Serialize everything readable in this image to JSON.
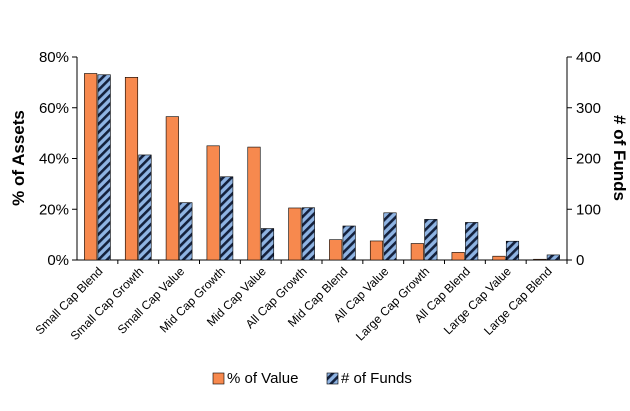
{
  "chart_data": {
    "type": "bar",
    "categories": [
      "Small Cap Blend",
      "Small Cap Growth",
      "Small Cap Value",
      "Mid Cap Growth",
      "Mid Cap Value",
      "All Cap Growth",
      "Mid Cap Blend",
      "All Cap Value",
      "Large Cap Growth",
      "All Cap Blend",
      "Large Cap Value",
      "Large Cap Blend"
    ],
    "series": [
      {
        "name": "% of Value",
        "axis": "left",
        "unit": "%",
        "values": [
          73.5,
          72,
          56.5,
          45,
          44.5,
          20.5,
          8,
          7.5,
          6.5,
          3,
          1.5,
          0.3
        ],
        "color": "#f7894e"
      },
      {
        "name": "# of Funds",
        "axis": "right",
        "values": [
          365,
          207,
          113,
          164,
          62,
          103,
          67,
          93,
          80,
          74,
          37,
          10
        ],
        "color": "#8fb4e3",
        "pattern": "diagonal-stripes"
      }
    ],
    "ylabel": "% of Assets",
    "y2label": "# of Funds",
    "ylim": [
      0,
      80
    ],
    "y2lim": [
      0,
      400
    ],
    "yticks": [
      "0%",
      "20%",
      "40%",
      "60%",
      "80%"
    ],
    "y2ticks": [
      "0",
      "100",
      "200",
      "300",
      "400"
    ],
    "legend": "bottom",
    "grid": false
  }
}
